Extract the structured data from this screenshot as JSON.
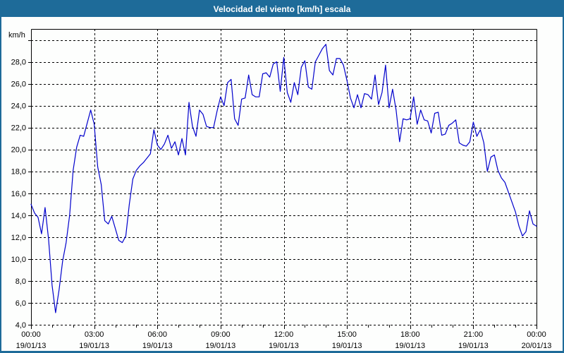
{
  "window": {
    "title": "Velocidad del viento [km/h] escala"
  },
  "colors": {
    "titlebar_bg": "#1e6b99",
    "border": "#1e6b99",
    "line": "#0000cc",
    "grid": "#000000",
    "background": "#fdfefd",
    "text": "#000000"
  },
  "chart_data": {
    "type": "line",
    "title": "Velocidad del viento [km/h] escala",
    "ylabel": "km/h",
    "xlabel": "",
    "grid": true,
    "legend": "none",
    "xlim_hours": [
      0,
      24
    ],
    "ylim": [
      4,
      31
    ],
    "y_gridlines": [
      4,
      6,
      8,
      10,
      12,
      14,
      16,
      18,
      20,
      22,
      24,
      26,
      28,
      30
    ],
    "y_ticks": [
      {
        "value": 4,
        "label": "4,0"
      },
      {
        "value": 6,
        "label": "6,0"
      },
      {
        "value": 8,
        "label": "8,0"
      },
      {
        "value": 10,
        "label": "10,0"
      },
      {
        "value": 12,
        "label": "12,0"
      },
      {
        "value": 14,
        "label": "14,0"
      },
      {
        "value": 16,
        "label": "16,0"
      },
      {
        "value": 18,
        "label": "18,0"
      },
      {
        "value": 20,
        "label": "20,0"
      },
      {
        "value": 22,
        "label": "22,0"
      },
      {
        "value": 24,
        "label": "24,0"
      },
      {
        "value": 26,
        "label": "26,0"
      },
      {
        "value": 28,
        "label": "28,0"
      }
    ],
    "x_ticks": [
      {
        "hours": 0,
        "time": "00:00",
        "date": "19/01/13"
      },
      {
        "hours": 3,
        "time": "03:00",
        "date": "19/01/13"
      },
      {
        "hours": 6,
        "time": "06:00",
        "date": "19/01/13"
      },
      {
        "hours": 9,
        "time": "09:00",
        "date": "19/01/13"
      },
      {
        "hours": 12,
        "time": "12:00",
        "date": "19/01/13"
      },
      {
        "hours": 15,
        "time": "15:00",
        "date": "19/01/13"
      },
      {
        "hours": 18,
        "time": "18:00",
        "date": "19/01/13"
      },
      {
        "hours": 21,
        "time": "21:00",
        "date": "19/01/13"
      },
      {
        "hours": 24,
        "time": "00:00",
        "date": "20/01/13"
      }
    ],
    "minor_x_tick_every_hours": 1,
    "series": [
      {
        "name": "Velocidad del viento",
        "unit": "km/h",
        "sample_interval_minutes": 10,
        "start_minute": 0,
        "values": [
          15.0,
          14.2,
          13.8,
          12.3,
          14.7,
          11.8,
          7.6,
          5.1,
          7.2,
          9.8,
          11.5,
          14.0,
          18.1,
          20.2,
          21.3,
          21.2,
          22.4,
          23.6,
          22.3,
          18.4,
          16.8,
          13.5,
          13.2,
          13.9,
          12.8,
          11.7,
          11.5,
          12.1,
          15.0,
          17.3,
          18.1,
          18.5,
          18.8,
          19.2,
          19.6,
          21.8,
          20.4,
          20.0,
          20.5,
          21.3,
          20.1,
          20.7,
          19.5,
          21.0,
          19.5,
          24.3,
          22.1,
          21.2,
          23.6,
          23.2,
          22.1,
          22.0,
          22.0,
          23.5,
          24.8,
          24.0,
          26.1,
          26.4,
          22.8,
          22.2,
          24.6,
          24.7,
          26.8,
          25.0,
          24.8,
          24.8,
          26.9,
          27.0,
          26.6,
          27.8,
          28.0,
          25.3,
          28.4,
          25.2,
          24.3,
          26.1,
          25.0,
          27.5,
          28.1,
          25.7,
          25.5,
          28.0,
          28.6,
          29.2,
          29.6,
          27.2,
          26.8,
          28.3,
          28.3,
          27.7,
          26.3,
          24.7,
          23.8,
          25.0,
          23.8,
          25.1,
          25.0,
          24.6,
          26.8,
          24.1,
          25.2,
          27.7,
          23.8,
          25.5,
          23.6,
          20.7,
          22.8,
          22.7,
          22.8,
          24.8,
          22.3,
          23.6,
          22.7,
          22.6,
          21.5,
          23.3,
          23.4,
          21.3,
          21.4,
          22.2,
          22.4,
          22.7,
          20.6,
          20.4,
          20.3,
          20.7,
          22.5,
          21.2,
          21.8,
          20.6,
          18.0,
          19.3,
          19.5,
          18.1,
          17.4,
          17.0,
          16.1,
          15.2,
          14.3,
          13.0,
          12.1,
          12.5,
          14.4,
          13.2,
          13.0
        ]
      }
    ]
  }
}
